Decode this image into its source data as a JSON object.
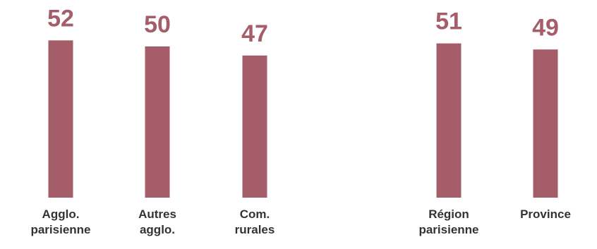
{
  "chart_data": [
    {
      "type": "bar",
      "categories": [
        [
          "Agglo.",
          "parisienne"
        ],
        [
          "Autres",
          "agglo."
        ],
        [
          "Com.",
          "rurales"
        ]
      ],
      "values": [
        52,
        50,
        47
      ],
      "color": "#a55d69"
    },
    {
      "type": "bar",
      "categories": [
        [
          "Région",
          "parisienne"
        ],
        [
          "Province"
        ]
      ],
      "values": [
        51,
        49
      ],
      "color": "#a55d69"
    }
  ]
}
